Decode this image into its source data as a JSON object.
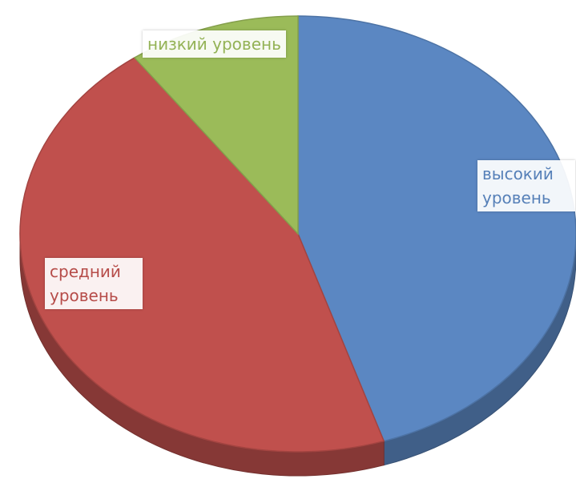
{
  "chart_data": {
    "type": "pie",
    "categories": [
      "высокий уровень",
      "средний уровень",
      "низкий уровень"
    ],
    "values": [
      45,
      45,
      10
    ],
    "colors": [
      "#5b87c2",
      "#c0504d",
      "#9bbb59"
    ]
  }
}
